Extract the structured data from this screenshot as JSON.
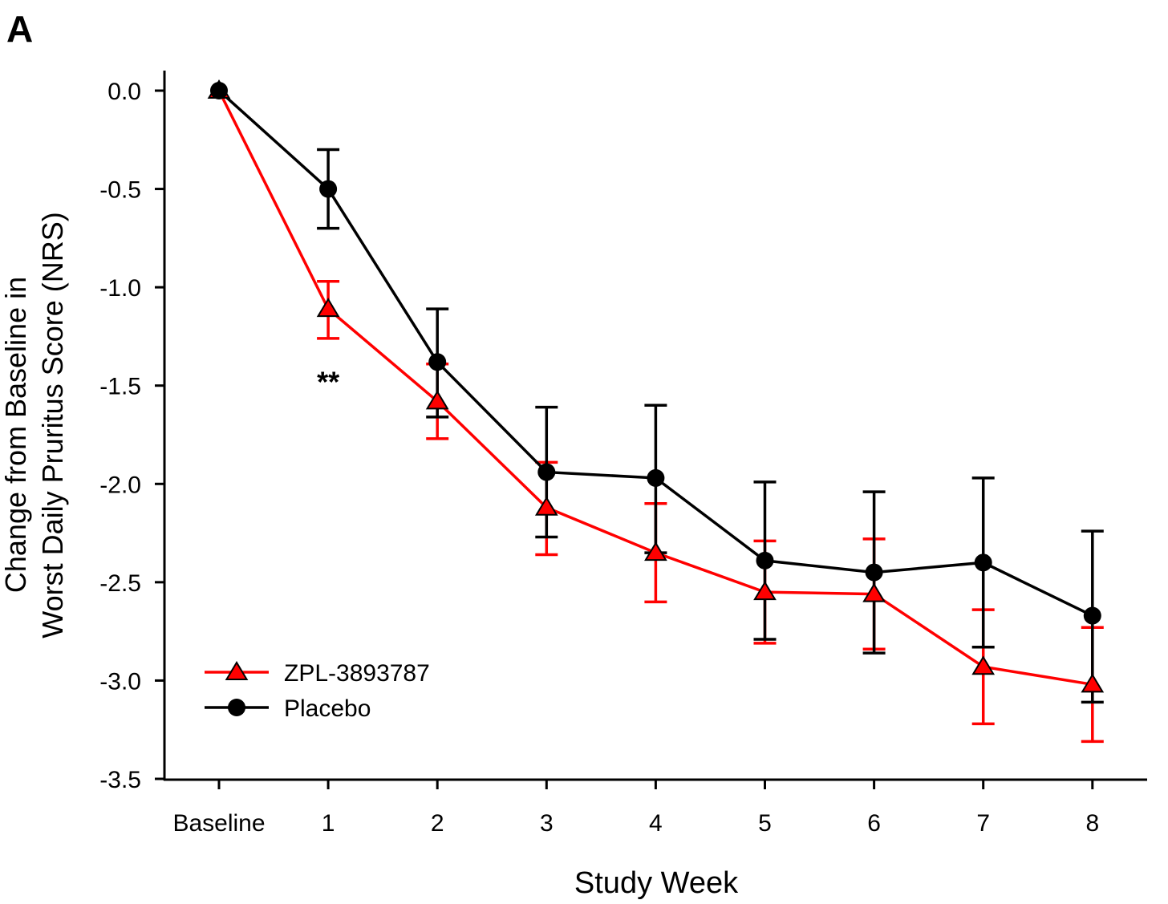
{
  "panel_label": "A",
  "chart_data": {
    "type": "line",
    "title": "",
    "xlabel": "Study Week",
    "ylabel_lines": [
      "Change from Baseline in",
      "Worst Daily Pruritus Score (NRS)"
    ],
    "categories": [
      "Baseline",
      "1",
      "2",
      "3",
      "4",
      "5",
      "6",
      "7",
      "8"
    ],
    "ylim": [
      -3.5,
      0.0
    ],
    "yticks": [
      0.0,
      -0.5,
      -1.0,
      -1.5,
      -2.0,
      -2.5,
      -3.0,
      -3.5
    ],
    "ytick_labels": [
      "0.0",
      "-0.5",
      "-1.0",
      "-1.5",
      "-2.0",
      "-2.5",
      "-3.0",
      "-3.5"
    ],
    "grid": false,
    "legend_position": "bottom-left",
    "series": [
      {
        "name": "ZPL-3893787",
        "color": "#ff0000",
        "marker": "triangle",
        "values": [
          0.0,
          -1.11,
          -1.58,
          -2.12,
          -2.35,
          -2.55,
          -2.56,
          -2.93,
          -3.02
        ],
        "err_upper": [
          0.0,
          -0.97,
          -1.39,
          -1.89,
          -2.1,
          -2.29,
          -2.28,
          -2.64,
          -2.73
        ],
        "err_lower": [
          0.0,
          -1.26,
          -1.77,
          -2.36,
          -2.6,
          -2.81,
          -2.84,
          -3.22,
          -3.31
        ]
      },
      {
        "name": "Placebo",
        "color": "#000000",
        "marker": "circle",
        "values": [
          0.0,
          -0.5,
          -1.38,
          -1.94,
          -1.97,
          -2.39,
          -2.45,
          -2.4,
          -2.67
        ],
        "err_upper": [
          0.0,
          -0.3,
          -1.11,
          -1.61,
          -1.6,
          -1.99,
          -2.04,
          -1.97,
          -2.24
        ],
        "err_lower": [
          0.0,
          -0.7,
          -1.66,
          -2.27,
          -2.35,
          -2.79,
          -2.86,
          -2.83,
          -3.11
        ]
      }
    ],
    "annotations": [
      {
        "text": "**",
        "category": "1",
        "y": -1.45
      }
    ]
  }
}
